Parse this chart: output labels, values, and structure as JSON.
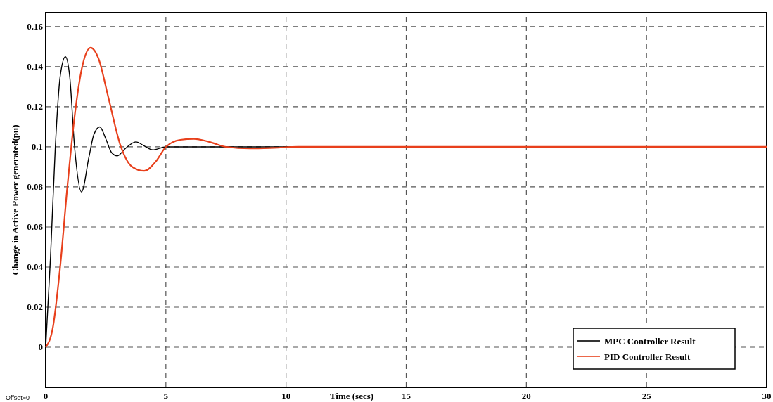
{
  "chart_data": {
    "type": "line",
    "xlabel": "Time (secs)",
    "ylabel": "Change in Active Power generated(pu)",
    "annotations": [
      "Offset=0"
    ],
    "xlim": [
      0,
      30
    ],
    "xticks": [
      0,
      5,
      10,
      15,
      20,
      25,
      30
    ],
    "ylim": [
      -0.02,
      0.167
    ],
    "yticks": [
      0,
      0.02,
      0.04,
      0.06,
      0.08,
      0.1,
      0.12,
      0.14,
      0.16
    ],
    "grid": true,
    "legend": "bottom right",
    "line_style": "solid",
    "marker": "none",
    "series": [
      {
        "name": "MPC Controller Result",
        "color": "#000000",
        "x": [
          0,
          0.2,
          0.4,
          0.6,
          0.82,
          1.0,
          1.2,
          1.49,
          1.8,
          2.0,
          2.25,
          2.5,
          2.75,
          2.98,
          3.3,
          3.75,
          4.1,
          4.45,
          5.0,
          6,
          8,
          10,
          15,
          20,
          25,
          30
        ],
        "values": [
          0,
          0.045,
          0.1,
          0.135,
          0.145,
          0.135,
          0.1,
          0.0775,
          0.095,
          0.106,
          0.11,
          0.104,
          0.097,
          0.0955,
          0.099,
          0.1025,
          0.1005,
          0.0985,
          0.1,
          0.1,
          0.1,
          0.1,
          0.1,
          0.1,
          0.1,
          0.1
        ]
      },
      {
        "name": "PID Controller Result",
        "color": "#e8401c",
        "x": [
          0,
          0.3,
          0.6,
          0.9,
          1.2,
          1.5,
          1.87,
          2.2,
          2.6,
          3.13,
          3.6,
          4.1,
          4.6,
          5.0,
          5.6,
          6.17,
          6.8,
          7.5,
          8.5,
          9.5,
          10.5,
          12,
          15,
          20,
          25,
          30
        ],
        "values": [
          0,
          0.01,
          0.04,
          0.08,
          0.115,
          0.139,
          0.1495,
          0.144,
          0.125,
          0.1,
          0.09,
          0.088,
          0.093,
          0.1,
          0.1035,
          0.104,
          0.1025,
          0.1,
          0.0992,
          0.0995,
          0.1,
          0.1,
          0.1,
          0.1,
          0.1,
          0.1
        ]
      }
    ]
  }
}
